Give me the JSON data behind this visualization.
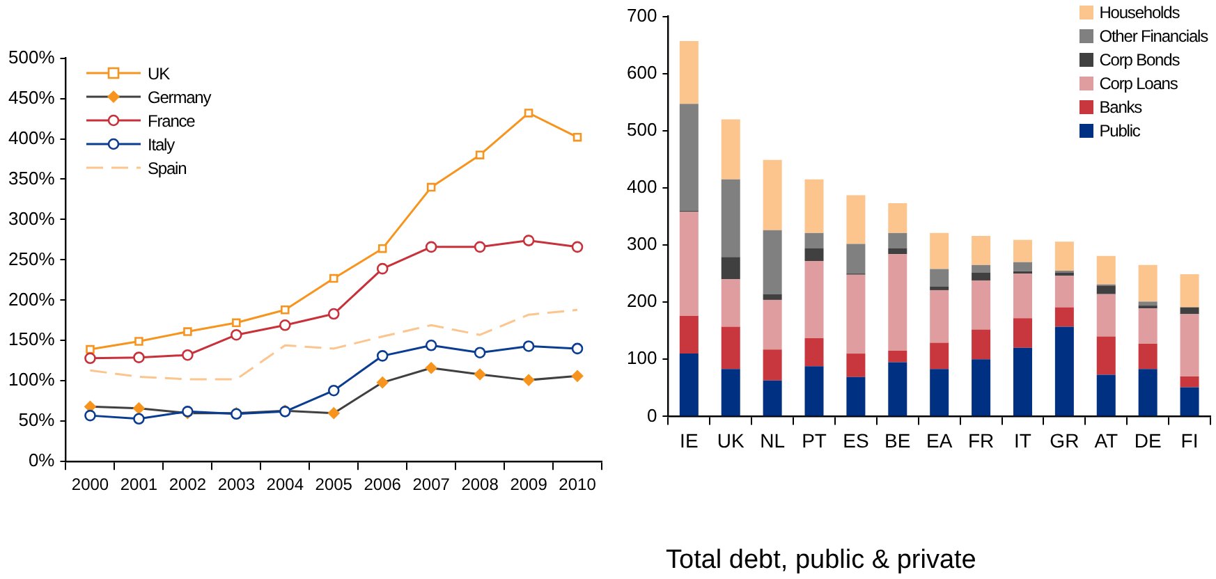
{
  "chart_data": [
    {
      "type": "line",
      "categories": [
        "2000",
        "2001",
        "2002",
        "2003",
        "2004",
        "2005",
        "2006",
        "2007",
        "2008",
        "2009",
        "2010"
      ],
      "series": [
        {
          "name": "UK",
          "color": "#f7941d",
          "marker": "square",
          "values": [
            139,
            149,
            161,
            172,
            188,
            227,
            264,
            340,
            380,
            432,
            402
          ]
        },
        {
          "name": "Germany",
          "color": "#404040",
          "colors": [
            "#f7941d",
            "#f7941d",
            "#f7941d",
            "#f7941d",
            "#f7941d",
            "#f7941d",
            "#f7941d",
            "#f7941d",
            "#f7941d",
            "#f7941d",
            "#f7941d"
          ],
          "marker": "diamond",
          "values": [
            68,
            66,
            60,
            60,
            63,
            60,
            98,
            116,
            108,
            101,
            106
          ]
        },
        {
          "name": "France",
          "color": "#c8313a",
          "marker": "circle",
          "values": [
            128,
            129,
            132,
            157,
            169,
            183,
            239,
            266,
            266,
            274,
            266
          ]
        },
        {
          "name": "Italy",
          "color": "#0a3d91",
          "marker": "circle",
          "values": [
            57,
            53,
            62,
            59,
            62,
            88,
            131,
            144,
            135,
            143,
            140
          ]
        },
        {
          "name": "Spain",
          "color": "#fbc58d",
          "marker": "none",
          "line_style": "dashed",
          "values": [
            113,
            105,
            102,
            102,
            144,
            140,
            155,
            169,
            157,
            182,
            188
          ]
        }
      ],
      "ylim": [
        0,
        500
      ],
      "yticks": [
        {
          "value": 0,
          "label": "0%"
        },
        {
          "value": 50,
          "label": "50%"
        },
        {
          "value": 100,
          "label": "100%"
        },
        {
          "value": 150,
          "label": "150%"
        },
        {
          "value": 200,
          "label": "200%"
        },
        {
          "value": 250,
          "label": "250%"
        },
        {
          "value": 300,
          "label": "300%"
        },
        {
          "value": 350,
          "label": "350%"
        },
        {
          "value": 400,
          "label": "400%"
        },
        {
          "value": 450,
          "label": "450%"
        },
        {
          "value": 500,
          "label": "500%"
        }
      ],
      "grid": false,
      "legend": "top left"
    },
    {
      "type": "bar",
      "stacked": true,
      "categories": [
        "IE",
        "UK",
        "NL",
        "PT",
        "ES",
        "BE",
        "EA",
        "FR",
        "IT",
        "GR",
        "AT",
        "DE",
        "FI"
      ],
      "series": [
        {
          "name": "Public",
          "color": "#003082",
          "values": [
            110,
            83,
            63,
            88,
            69,
            95,
            83,
            100,
            120,
            157,
            73,
            83,
            51
          ]
        },
        {
          "name": "Banks",
          "color": "#c8373d",
          "values": [
            66,
            74,
            54,
            49,
            41,
            20,
            46,
            52,
            52,
            34,
            67,
            44,
            19
          ]
        },
        {
          "name": "Corp Loans",
          "color": "#df9d9f",
          "values": [
            182,
            83,
            87,
            135,
            138,
            169,
            92,
            86,
            78,
            55,
            74,
            62,
            109
          ]
        },
        {
          "name": "Corp Bonds",
          "color": "#404040",
          "values": [
            2,
            39,
            10,
            22,
            2,
            10,
            6,
            14,
            4,
            6,
            15,
            5,
            12
          ]
        },
        {
          "name": "Other Financials",
          "color": "#808080",
          "values": [
            187,
            136,
            112,
            27,
            52,
            27,
            31,
            13,
            16,
            3,
            2,
            7,
            0
          ]
        },
        {
          "name": "Households",
          "color": "#fbc58d",
          "values": [
            110,
            105,
            123,
            94,
            85,
            52,
            63,
            51,
            39,
            51,
            50,
            64,
            58
          ]
        }
      ],
      "ylim": [
        0,
        700
      ],
      "yticks": [
        0,
        100,
        200,
        300,
        400,
        500,
        600,
        700
      ],
      "grid": false,
      "legend": "top right",
      "annotations": [
        "Total debt, public & private"
      ]
    }
  ]
}
